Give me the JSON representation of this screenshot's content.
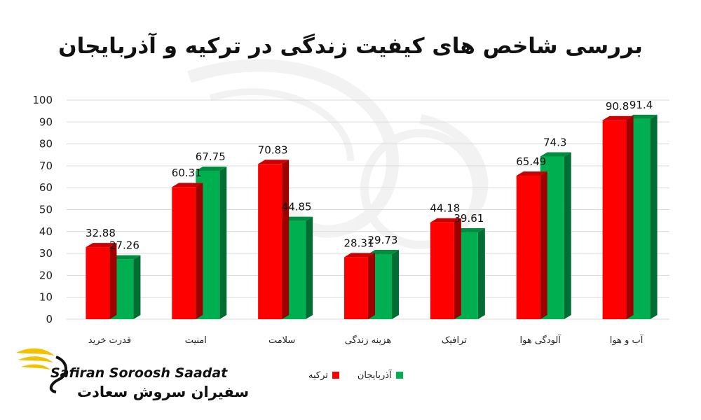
{
  "chart_data": {
    "type": "bar",
    "title": "بررسی شاخص های کیفیت زندگی در ترکیه و آذربایجان",
    "categories": [
      "قدرت خرید",
      "امنیت",
      "سلامت",
      "هزینه زندگی",
      "ترافیک",
      "آلودگی هوا",
      "آب و هوا"
    ],
    "series": [
      {
        "name": "ترکیه",
        "color": "#ff0000",
        "values": [
          32.88,
          60.31,
          70.83,
          28.31,
          44.18,
          65.49,
          90.8
        ]
      },
      {
        "name": "آذربایجان",
        "color": "#00b050",
        "values": [
          27.26,
          67.75,
          44.85,
          29.73,
          39.61,
          74.3,
          91.4
        ]
      }
    ],
    "ylim": [
      0,
      100
    ],
    "yticks": [
      0,
      10,
      20,
      30,
      40,
      50,
      60,
      70,
      80,
      90,
      100
    ],
    "grid": true,
    "legend": "bottom",
    "data_labels": true,
    "style": "3d-clustered-column"
  },
  "watermark": {
    "brand_en": "Safiran Soroosh Saadat",
    "brand_fa": "سفیران سروش سعادت"
  },
  "colors": {
    "turkey": "#ff0000",
    "azerbaijan": "#00b050",
    "gold": "#f2c200"
  }
}
